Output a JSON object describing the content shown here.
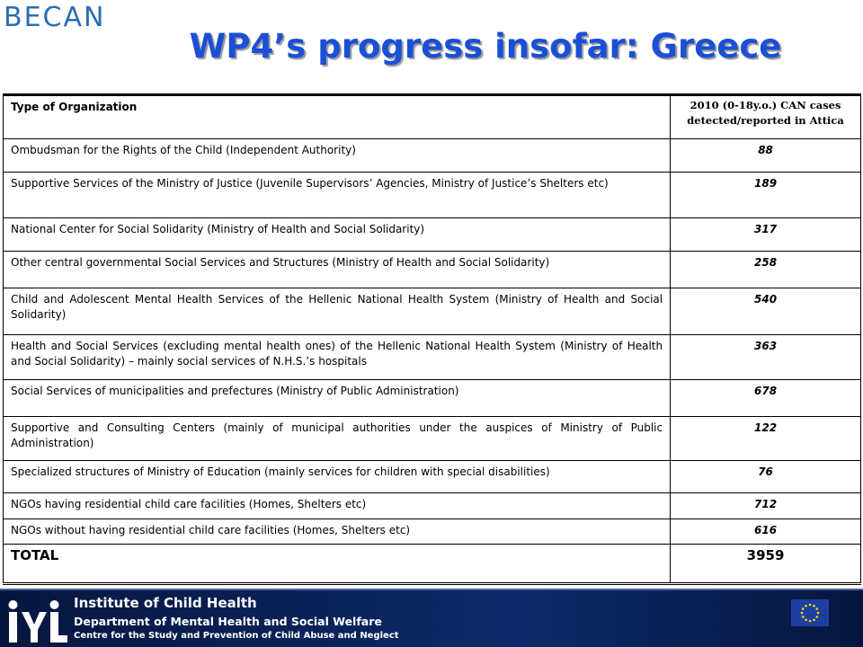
{
  "header": {
    "logo": "BECAN",
    "title": "WP4’s progress insofar: Greece"
  },
  "table": {
    "columns": [
      "Type of Organization",
      "2010 (0-18y.o.) CAN cases detected/reported in Attica"
    ],
    "rows": [
      [
        "Ombudsman for the Rights of the Child (Independent Authority)",
        "88"
      ],
      [
        "Supportive Services of the Ministry of Justice (Juvenile Supervisors’ Agencies, Ministry of Justice’s Shelters etc)",
        "189"
      ],
      [
        "National Center for Social Solidarity (Ministry of Health and Social Solidarity)",
        "317"
      ],
      [
        "Other central governmental Social Services and Structures (Ministry of Health and Social Solidarity)",
        "258"
      ],
      [
        "Child and Adolescent Mental Health Services of the Hellenic National Health System (Ministry of Health and Social Solidarity)",
        "540"
      ],
      [
        "Health and Social Services (excluding mental health ones) of the Hellenic National Health System (Ministry of Health and Social Solidarity) – mainly social services of N.H.S.’s hospitals",
        "363"
      ],
      [
        "Social Services of municipalities and prefectures (Ministry of Public Administration)",
        "678"
      ],
      [
        "Supportive and Consulting Centers (mainly of municipal authorities under the auspices of Ministry of Public Administration)",
        "122"
      ],
      [
        "Specialized structures of Ministry of Education (mainly services for children with special disabilities)",
        "76"
      ],
      [
        "NGOs having residential child care facilities (Homes, Shelters etc)",
        "712"
      ],
      [
        "NGOs without having residential child care facilities (Homes, Shelters etc)",
        "616"
      ],
      [
        "TOTAL",
        "3959"
      ]
    ]
  },
  "footer": {
    "line1": "Institute of Child Health",
    "line2": "Department of Mental Health and Social Welfare",
    "line3": "Centre for the Study and Prevention of Child Abuse and Neglect"
  }
}
